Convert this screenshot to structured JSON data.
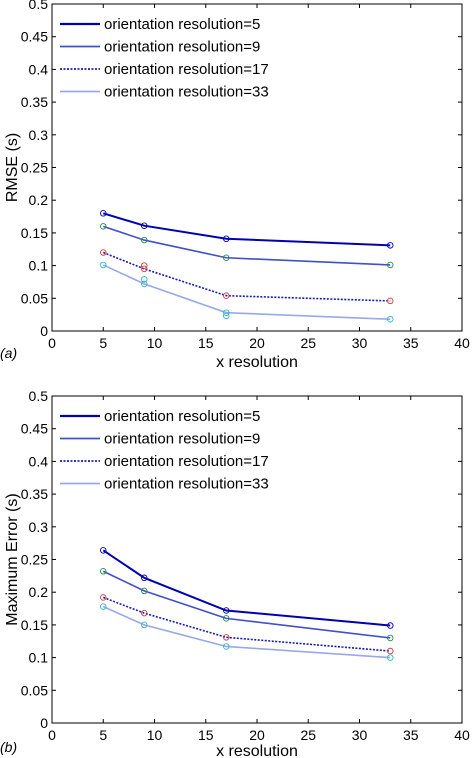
{
  "chart_data": [
    {
      "type": "line",
      "panel_label": "(a)",
      "xlabel": "x resolution",
      "ylabel": "RMSE (s)",
      "xlim": [
        0,
        40
      ],
      "ylim": [
        0,
        0.5
      ],
      "xticks": [
        0,
        5,
        10,
        15,
        20,
        25,
        30,
        35,
        40
      ],
      "xtick_labels": [
        "0",
        "5",
        "10",
        "15",
        "20",
        "25",
        "30",
        "35",
        "40"
      ],
      "yticks": [
        0,
        0.05,
        0.1,
        0.15,
        0.2,
        0.25,
        0.3,
        0.35,
        0.4,
        0.45,
        0.5
      ],
      "ytick_labels": [
        "0",
        "0.05",
        "0.1",
        "0.15",
        "0.2",
        "0.25",
        "0.3",
        "0.35",
        "0.4",
        "0.45",
        "0.5"
      ],
      "grid": false,
      "legend_position": "top-left",
      "series": [
        {
          "name": "orientation resolution=5",
          "x": [
            5,
            9,
            17,
            33
          ],
          "values": [
            0.18,
            0.161,
            0.141,
            0.131
          ],
          "color": "#0000b0",
          "dash": "solid",
          "marker_color": "#0000b0"
        },
        {
          "name": "orientation resolution=9",
          "x": [
            5,
            9,
            17,
            33
          ],
          "values": [
            0.16,
            0.139,
            0.112,
            0.101
          ],
          "color": "#4050c8",
          "dash": "solid",
          "marker_color": "#2a8a4a"
        },
        {
          "name": "orientation resolution=17",
          "x": [
            5,
            9,
            17,
            33
          ],
          "values": [
            0.12,
            0.095,
            0.054,
            0.046
          ],
          "color": "#1a1ab0",
          "dash": "dotted",
          "marker_color": "#d04040"
        },
        {
          "name": "orientation resolution=33",
          "x": [
            5,
            9,
            17,
            33
          ],
          "values": [
            0.101,
            0.072,
            0.028,
            0.018
          ],
          "color": "#9aa8e6",
          "dash": "solid",
          "marker_color": "#30b8c8"
        }
      ],
      "extra_markers": [
        {
          "x": 9,
          "y": 0.1,
          "color": "#d04040"
        },
        {
          "x": 9,
          "y": 0.079,
          "color": "#30b8c8"
        },
        {
          "x": 17,
          "y": 0.023,
          "color": "#30b8c8"
        }
      ]
    },
    {
      "type": "line",
      "panel_label": "(b)",
      "xlabel": "x resolution",
      "ylabel": "Maximum Error (s)",
      "xlim": [
        0,
        40
      ],
      "ylim": [
        0,
        0.5
      ],
      "xticks": [
        0,
        5,
        10,
        15,
        20,
        25,
        30,
        35,
        40
      ],
      "xtick_labels": [
        "0",
        "5",
        "10",
        "15",
        "20",
        "25",
        "30",
        "35",
        "40"
      ],
      "yticks": [
        0,
        0.05,
        0.1,
        0.15,
        0.2,
        0.25,
        0.3,
        0.35,
        0.4,
        0.45,
        0.5
      ],
      "ytick_labels": [
        "0",
        "0.05",
        "0.1",
        "0.15",
        "0.2",
        "0.25",
        "0.3",
        "0.35",
        "0.4",
        "0.45",
        "0.5"
      ],
      "grid": false,
      "legend_position": "top-left",
      "series": [
        {
          "name": "orientation resolution=5",
          "x": [
            5,
            9,
            17,
            33
          ],
          "values": [
            0.264,
            0.222,
            0.172,
            0.149
          ],
          "color": "#0000b0",
          "dash": "solid",
          "marker_color": "#0000b0"
        },
        {
          "name": "orientation resolution=9",
          "x": [
            5,
            9,
            17,
            33
          ],
          "values": [
            0.232,
            0.202,
            0.16,
            0.13
          ],
          "color": "#4050c8",
          "dash": "solid",
          "marker_color": "#2a8a4a"
        },
        {
          "name": "orientation resolution=17",
          "x": [
            5,
            9,
            17,
            33
          ],
          "values": [
            0.192,
            0.168,
            0.131,
            0.11
          ],
          "color": "#1a1ab0",
          "dash": "dotted",
          "marker_color": "#d04040"
        },
        {
          "name": "orientation resolution=33",
          "x": [
            5,
            9,
            17,
            33
          ],
          "values": [
            0.178,
            0.15,
            0.117,
            0.1
          ],
          "color": "#9aa8e6",
          "dash": "solid",
          "marker_color": "#30b8c8"
        }
      ],
      "extra_markers": []
    }
  ]
}
